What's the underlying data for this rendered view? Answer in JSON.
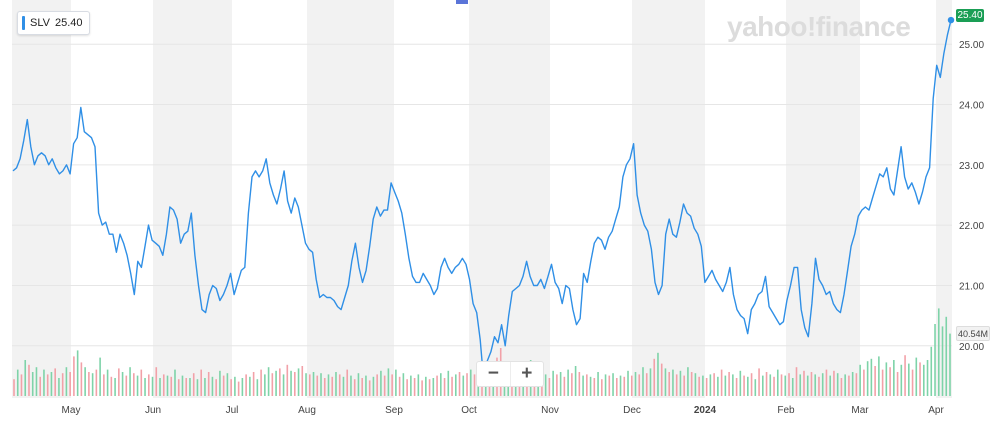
{
  "header": {
    "ticker": "SLV",
    "price": "25.40",
    "logo_text": "yahoo!finance"
  },
  "controls": {
    "zoom_out": "−",
    "zoom_in": "+"
  },
  "tags": {
    "last_price": "25.40",
    "volume": "40.54M"
  },
  "colors": {
    "line": "#2f8fe6",
    "volume_up": "#7ed3a8",
    "volume_down": "#f2a1a8",
    "band": "#f2f2f2",
    "price_tag": "#1a9e55"
  },
  "chart_data": {
    "type": "line",
    "y_ticks": [
      "25.00",
      "24.00",
      "23.00",
      "22.00",
      "21.00",
      "20.00"
    ],
    "ylim": [
      19.3,
      25.6
    ],
    "x_ticks": [
      "May",
      "Jun",
      "Jul",
      "Aug",
      "Sep",
      "Oct",
      "Nov",
      "Dec",
      "2024",
      "Feb",
      "Mar",
      "Apr"
    ],
    "bold_x_tick": "2024",
    "series": [
      {
        "values": [
          22.9,
          22.95,
          23.1,
          23.4,
          23.75,
          23.3,
          23.0,
          23.15,
          23.2,
          23.15,
          23.0,
          23.1,
          22.95,
          22.85,
          22.9,
          23.0,
          22.85,
          23.35,
          23.45,
          23.95,
          23.55,
          23.5,
          23.45,
          23.3,
          22.2,
          22.0,
          22.05,
          21.85,
          21.85,
          21.55,
          21.85,
          21.7,
          21.5,
          21.2,
          20.85,
          21.4,
          21.3,
          21.65,
          22.0,
          21.75,
          21.7,
          21.65,
          21.5,
          21.85,
          22.3,
          22.25,
          22.1,
          21.7,
          21.85,
          21.9,
          22.2,
          21.5,
          21.0,
          20.6,
          20.55,
          20.85,
          21.0,
          20.95,
          20.75,
          20.85,
          21.0,
          21.2,
          20.85,
          21.05,
          21.25,
          21.3,
          22.2,
          22.8,
          22.9,
          22.8,
          22.9,
          23.1,
          22.7,
          22.5,
          22.35,
          22.6,
          22.9,
          22.4,
          22.2,
          22.45,
          22.3,
          22.0,
          21.7,
          21.6,
          21.55,
          21.1,
          20.8,
          20.85,
          20.8,
          20.8,
          20.75,
          20.65,
          20.6,
          20.8,
          21.0,
          21.4,
          21.7,
          21.3,
          21.05,
          21.25,
          21.65,
          22.1,
          22.3,
          22.15,
          22.25,
          22.25,
          22.7,
          22.55,
          22.4,
          22.2,
          21.85,
          21.45,
          21.15,
          21.05,
          21.05,
          21.2,
          21.1,
          21.0,
          20.85,
          20.95,
          21.3,
          21.45,
          21.3,
          21.2,
          21.3,
          21.35,
          21.45,
          21.35,
          21.1,
          20.7,
          20.55,
          20.1,
          19.4,
          19.75,
          19.9,
          20.15,
          20.05,
          20.35,
          20.0,
          20.5,
          20.9,
          20.95,
          21.0,
          21.15,
          21.4,
          21.15,
          21.0,
          21.0,
          21.1,
          20.95,
          21.15,
          21.35,
          21.05,
          20.95,
          20.7,
          21.0,
          20.95,
          20.6,
          20.35,
          20.45,
          21.2,
          21.05,
          21.4,
          21.7,
          21.8,
          21.75,
          21.6,
          21.8,
          21.9,
          22.1,
          22.3,
          22.8,
          23.0,
          23.1,
          23.35,
          22.5,
          22.2,
          22.0,
          21.9,
          21.6,
          21.05,
          20.85,
          21.0,
          21.85,
          22.1,
          21.85,
          21.8,
          22.05,
          22.35,
          22.2,
          22.15,
          21.95,
          21.85,
          21.65,
          21.05,
          21.15,
          21.25,
          21.1,
          21.0,
          20.9,
          21.05,
          21.3,
          20.85,
          20.6,
          20.5,
          20.45,
          20.2,
          20.6,
          20.7,
          20.85,
          20.9,
          21.15,
          20.65,
          20.55,
          20.45,
          20.35,
          20.4,
          20.75,
          21.0,
          21.3,
          21.3,
          20.6,
          20.3,
          20.15,
          20.7,
          21.45,
          21.1,
          21.0,
          20.85,
          20.9,
          20.7,
          20.6,
          20.55,
          20.85,
          21.25,
          21.65,
          21.85,
          22.15,
          22.25,
          22.3,
          22.25,
          22.45,
          22.65,
          22.85,
          22.8,
          22.95,
          22.6,
          22.5,
          22.9,
          23.3,
          22.8,
          22.6,
          22.7,
          22.55,
          22.35,
          22.55,
          22.8,
          22.95,
          24.1,
          24.65,
          24.45,
          24.85,
          25.15,
          25.4
        ]
      }
    ],
    "volume": [
      {
        "v": 14,
        "up": false
      },
      {
        "v": 22,
        "up": true
      },
      {
        "v": 18,
        "up": false
      },
      {
        "v": 30,
        "up": true
      },
      {
        "v": 26,
        "up": false
      },
      {
        "v": 20,
        "up": true
      },
      {
        "v": 24,
        "up": true
      },
      {
        "v": 16,
        "up": false
      },
      {
        "v": 22,
        "up": true
      },
      {
        "v": 18,
        "up": false
      },
      {
        "v": 20,
        "up": true
      },
      {
        "v": 23,
        "up": false
      },
      {
        "v": 15,
        "up": true
      },
      {
        "v": 19,
        "up": false
      },
      {
        "v": 24,
        "up": true
      },
      {
        "v": 20,
        "up": false
      },
      {
        "v": 33,
        "up": false
      },
      {
        "v": 38,
        "up": true
      },
      {
        "v": 28,
        "up": false
      },
      {
        "v": 24,
        "up": true
      },
      {
        "v": 20,
        "up": false
      },
      {
        "v": 19,
        "up": true
      },
      {
        "v": 22,
        "up": false
      },
      {
        "v": 32,
        "up": true
      },
      {
        "v": 18,
        "up": false
      },
      {
        "v": 22,
        "up": true
      },
      {
        "v": 16,
        "up": false
      },
      {
        "v": 15,
        "up": true
      },
      {
        "v": 23,
        "up": false
      },
      {
        "v": 20,
        "up": true
      },
      {
        "v": 17,
        "up": false
      },
      {
        "v": 24,
        "up": true
      },
      {
        "v": 19,
        "up": false
      },
      {
        "v": 17,
        "up": true
      },
      {
        "v": 22,
        "up": false
      },
      {
        "v": 15,
        "up": true
      },
      {
        "v": 18,
        "up": false
      },
      {
        "v": 16,
        "up": true
      },
      {
        "v": 24,
        "up": false
      },
      {
        "v": 15,
        "up": true
      },
      {
        "v": 18,
        "up": false
      },
      {
        "v": 17,
        "up": true
      },
      {
        "v": 16,
        "up": false
      },
      {
        "v": 22,
        "up": true
      },
      {
        "v": 14,
        "up": false
      },
      {
        "v": 17,
        "up": true
      },
      {
        "v": 15,
        "up": false
      },
      {
        "v": 15,
        "up": true
      },
      {
        "v": 19,
        "up": false
      },
      {
        "v": 14,
        "up": true
      },
      {
        "v": 22,
        "up": false
      },
      {
        "v": 15,
        "up": true
      },
      {
        "v": 20,
        "up": false
      },
      {
        "v": 16,
        "up": true
      },
      {
        "v": 14,
        "up": false
      },
      {
        "v": 21,
        "up": true
      },
      {
        "v": 17,
        "up": false
      },
      {
        "v": 19,
        "up": true
      },
      {
        "v": 14,
        "up": false
      },
      {
        "v": 16,
        "up": true
      },
      {
        "v": 12,
        "up": false
      },
      {
        "v": 15,
        "up": true
      },
      {
        "v": 18,
        "up": false
      },
      {
        "v": 16,
        "up": true
      },
      {
        "v": 20,
        "up": false
      },
      {
        "v": 14,
        "up": true
      },
      {
        "v": 22,
        "up": false
      },
      {
        "v": 18,
        "up": true
      },
      {
        "v": 24,
        "up": true
      },
      {
        "v": 19,
        "up": false
      },
      {
        "v": 21,
        "up": true
      },
      {
        "v": 23,
        "up": false
      },
      {
        "v": 18,
        "up": true
      },
      {
        "v": 26,
        "up": false
      },
      {
        "v": 21,
        "up": true
      },
      {
        "v": 20,
        "up": false
      },
      {
        "v": 23,
        "up": true
      },
      {
        "v": 25,
        "up": false
      },
      {
        "v": 19,
        "up": true
      },
      {
        "v": 18,
        "up": false
      },
      {
        "v": 20,
        "up": true
      },
      {
        "v": 17,
        "up": false
      },
      {
        "v": 19,
        "up": true
      },
      {
        "v": 15,
        "up": false
      },
      {
        "v": 18,
        "up": true
      },
      {
        "v": 16,
        "up": false
      },
      {
        "v": 20,
        "up": true
      },
      {
        "v": 18,
        "up": false
      },
      {
        "v": 16,
        "up": true
      },
      {
        "v": 22,
        "up": false
      },
      {
        "v": 17,
        "up": true
      },
      {
        "v": 14,
        "up": false
      },
      {
        "v": 19,
        "up": true
      },
      {
        "v": 15,
        "up": false
      },
      {
        "v": 17,
        "up": true
      },
      {
        "v": 13,
        "up": false
      },
      {
        "v": 16,
        "up": true
      },
      {
        "v": 18,
        "up": false
      },
      {
        "v": 21,
        "up": true
      },
      {
        "v": 17,
        "up": false
      },
      {
        "v": 23,
        "up": true
      },
      {
        "v": 18,
        "up": false
      },
      {
        "v": 22,
        "up": true
      },
      {
        "v": 16,
        "up": false
      },
      {
        "v": 19,
        "up": true
      },
      {
        "v": 14,
        "up": false
      },
      {
        "v": 17,
        "up": true
      },
      {
        "v": 15,
        "up": false
      },
      {
        "v": 18,
        "up": true
      },
      {
        "v": 13,
        "up": false
      },
      {
        "v": 16,
        "up": true
      },
      {
        "v": 14,
        "up": false
      },
      {
        "v": 15,
        "up": true
      },
      {
        "v": 17,
        "up": false
      },
      {
        "v": 19,
        "up": true
      },
      {
        "v": 15,
        "up": false
      },
      {
        "v": 21,
        "up": true
      },
      {
        "v": 16,
        "up": false
      },
      {
        "v": 18,
        "up": true
      },
      {
        "v": 20,
        "up": false
      },
      {
        "v": 17,
        "up": true
      },
      {
        "v": 19,
        "up": false
      },
      {
        "v": 22,
        "up": true
      },
      {
        "v": 18,
        "up": false
      },
      {
        "v": 20,
        "up": true
      },
      {
        "v": 24,
        "up": false
      },
      {
        "v": 21,
        "up": true
      },
      {
        "v": 26,
        "up": false
      },
      {
        "v": 24,
        "up": true
      },
      {
        "v": 32,
        "up": false
      },
      {
        "v": 40,
        "up": false
      },
      {
        "v": 28,
        "up": true
      },
      {
        "v": 24,
        "up": true
      },
      {
        "v": 19,
        "up": false
      },
      {
        "v": 23,
        "up": true
      },
      {
        "v": 17,
        "up": false
      },
      {
        "v": 26,
        "up": true
      },
      {
        "v": 22,
        "up": false
      },
      {
        "v": 30,
        "up": true
      },
      {
        "v": 20,
        "up": false
      },
      {
        "v": 17,
        "up": true
      },
      {
        "v": 24,
        "up": false
      },
      {
        "v": 18,
        "up": true
      },
      {
        "v": 15,
        "up": false
      },
      {
        "v": 21,
        "up": true
      },
      {
        "v": 18,
        "up": false
      },
      {
        "v": 20,
        "up": true
      },
      {
        "v": 16,
        "up": false
      },
      {
        "v": 22,
        "up": true
      },
      {
        "v": 19,
        "up": false
      },
      {
        "v": 25,
        "up": true
      },
      {
        "v": 20,
        "up": false
      },
      {
        "v": 17,
        "up": true
      },
      {
        "v": 18,
        "up": false
      },
      {
        "v": 16,
        "up": true
      },
      {
        "v": 15,
        "up": false
      },
      {
        "v": 20,
        "up": true
      },
      {
        "v": 14,
        "up": false
      },
      {
        "v": 18,
        "up": true
      },
      {
        "v": 17,
        "up": false
      },
      {
        "v": 19,
        "up": true
      },
      {
        "v": 15,
        "up": false
      },
      {
        "v": 17,
        "up": true
      },
      {
        "v": 16,
        "up": false
      },
      {
        "v": 21,
        "up": true
      },
      {
        "v": 17,
        "up": false
      },
      {
        "v": 20,
        "up": true
      },
      {
        "v": 18,
        "up": false
      },
      {
        "v": 24,
        "up": true
      },
      {
        "v": 19,
        "up": false
      },
      {
        "v": 23,
        "up": true
      },
      {
        "v": 31,
        "up": false
      },
      {
        "v": 36,
        "up": true
      },
      {
        "v": 27,
        "up": false
      },
      {
        "v": 23,
        "up": true
      },
      {
        "v": 20,
        "up": false
      },
      {
        "v": 22,
        "up": true
      },
      {
        "v": 18,
        "up": false
      },
      {
        "v": 21,
        "up": true
      },
      {
        "v": 17,
        "up": false
      },
      {
        "v": 24,
        "up": true
      },
      {
        "v": 20,
        "up": false
      },
      {
        "v": 19,
        "up": true
      },
      {
        "v": 16,
        "up": false
      },
      {
        "v": 17,
        "up": true
      },
      {
        "v": 15,
        "up": false
      },
      {
        "v": 18,
        "up": true
      },
      {
        "v": 19,
        "up": false
      },
      {
        "v": 16,
        "up": true
      },
      {
        "v": 22,
        "up": false
      },
      {
        "v": 17,
        "up": true
      },
      {
        "v": 20,
        "up": false
      },
      {
        "v": 18,
        "up": true
      },
      {
        "v": 15,
        "up": false
      },
      {
        "v": 21,
        "up": true
      },
      {
        "v": 17,
        "up": false
      },
      {
        "v": 16,
        "up": true
      },
      {
        "v": 19,
        "up": false
      },
      {
        "v": 14,
        "up": true
      },
      {
        "v": 23,
        "up": false
      },
      {
        "v": 17,
        "up": true
      },
      {
        "v": 20,
        "up": false
      },
      {
        "v": 18,
        "up": true
      },
      {
        "v": 16,
        "up": false
      },
      {
        "v": 22,
        "up": true
      },
      {
        "v": 18,
        "up": false
      },
      {
        "v": 17,
        "up": true
      },
      {
        "v": 19,
        "up": false
      },
      {
        "v": 15,
        "up": true
      },
      {
        "v": 24,
        "up": false
      },
      {
        "v": 18,
        "up": true
      },
      {
        "v": 21,
        "up": false
      },
      {
        "v": 17,
        "up": true
      },
      {
        "v": 20,
        "up": false
      },
      {
        "v": 18,
        "up": true
      },
      {
        "v": 16,
        "up": false
      },
      {
        "v": 19,
        "up": true
      },
      {
        "v": 22,
        "up": false
      },
      {
        "v": 17,
        "up": true
      },
      {
        "v": 21,
        "up": false
      },
      {
        "v": 19,
        "up": true
      },
      {
        "v": 15,
        "up": false
      },
      {
        "v": 18,
        "up": true
      },
      {
        "v": 17,
        "up": false
      },
      {
        "v": 20,
        "up": true
      },
      {
        "v": 19,
        "up": false
      },
      {
        "v": 26,
        "up": true
      },
      {
        "v": 22,
        "up": false
      },
      {
        "v": 29,
        "up": true
      },
      {
        "v": 31,
        "up": true
      },
      {
        "v": 25,
        "up": false
      },
      {
        "v": 33,
        "up": true
      },
      {
        "v": 22,
        "up": false
      },
      {
        "v": 28,
        "up": true
      },
      {
        "v": 24,
        "up": false
      },
      {
        "v": 30,
        "up": true
      },
      {
        "v": 20,
        "up": false
      },
      {
        "v": 26,
        "up": true
      },
      {
        "v": 34,
        "up": false
      },
      {
        "v": 27,
        "up": true
      },
      {
        "v": 22,
        "up": false
      },
      {
        "v": 32,
        "up": true
      },
      {
        "v": 28,
        "up": false
      },
      {
        "v": 26,
        "up": true
      },
      {
        "v": 30,
        "up": true
      },
      {
        "v": 41,
        "up": true
      },
      {
        "v": 60,
        "up": true
      },
      {
        "v": 73,
        "up": true
      },
      {
        "v": 58,
        "up": true
      },
      {
        "v": 66,
        "up": true
      },
      {
        "v": 52,
        "up": true
      }
    ]
  }
}
